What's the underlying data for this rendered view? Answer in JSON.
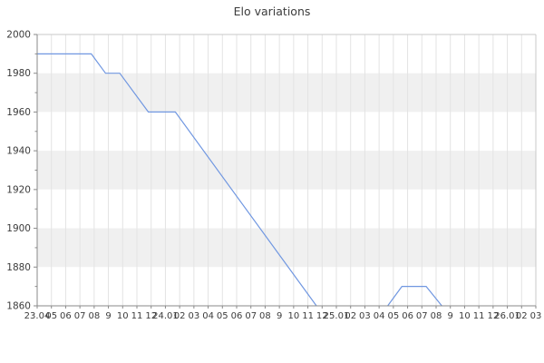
{
  "chart_data": {
    "type": "line",
    "title": "Elo variations",
    "xlabel": "",
    "ylabel": "",
    "ylim": [
      1860,
      2000
    ],
    "y_ticks": [
      2000,
      1980,
      1960,
      1940,
      1920,
      1900,
      1880,
      1860
    ],
    "x_tick_labels": [
      "23.04",
      "05",
      "06",
      "07",
      "08",
      "9",
      "10",
      "11",
      "12",
      "24.01",
      "02",
      "03",
      "04",
      "05",
      "06",
      "07",
      "08",
      "9",
      "10",
      "11",
      "12",
      "25.01",
      "02",
      "03",
      "04",
      "05",
      "06",
      "07",
      "08",
      "9",
      "10",
      "11",
      "12",
      "26.01",
      "02",
      "03"
    ],
    "grid": {
      "vertical_gridlines": true,
      "horizontal_bands": true,
      "legend": "none"
    },
    "series": [
      {
        "name": "Elo",
        "color": "#7097e1",
        "segments": [
          [
            [
              0,
              1990
            ],
            [
              3.8,
              1990
            ],
            [
              4.8,
              1980
            ],
            [
              5.8,
              1980
            ],
            [
              7.8,
              1960
            ],
            [
              9.7,
              1960
            ],
            [
              19.6,
              1860
            ]
          ],
          [
            [
              24.6,
              1860
            ],
            [
              25.6,
              1870
            ],
            [
              27.3,
              1870
            ],
            [
              28.4,
              1860
            ]
          ]
        ]
      }
    ],
    "colors": {
      "band": "#f0f0f0",
      "band_alt": "#ffffff",
      "gridline": "#e3e3e3",
      "axis": "#8a8a8a",
      "border": "#c9c9c9",
      "tick_text": "#3c3c3c",
      "background": "#ffffff"
    }
  }
}
